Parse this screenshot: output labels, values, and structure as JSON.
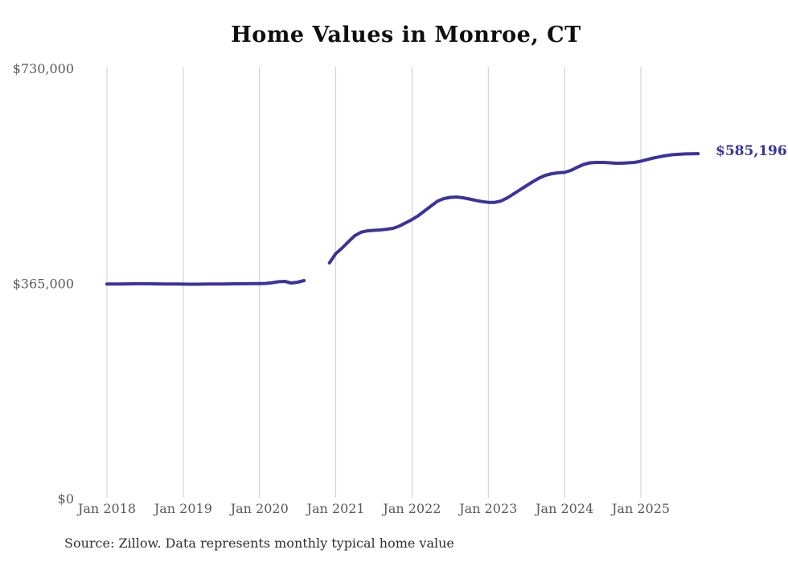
{
  "chart_data": {
    "type": "line",
    "title": "Home Values in Monroe, CT",
    "source_note": "Source: Zillow. Data represents monthly typical home value",
    "end_label": "$585,196",
    "legend_position": "none",
    "grid": "vertical-only",
    "ylim": [
      0,
      730000
    ],
    "colors": {
      "line": "#3a339c",
      "end_label": "#3a339c",
      "grid": "#cccccc",
      "axis_labels": "#595959",
      "title": "#0f0f0f",
      "source": "#2f2f2f",
      "background": "#ffffff"
    },
    "y_ticks": [
      {
        "value": 0,
        "label": "$0"
      },
      {
        "value": 365000,
        "label": "$365,000"
      },
      {
        "value": 730000,
        "label": "$730,000"
      }
    ],
    "x_ticks": [
      {
        "month": "2018-01",
        "label": "Jan 2018"
      },
      {
        "month": "2019-01",
        "label": "Jan 2019"
      },
      {
        "month": "2020-01",
        "label": "Jan 2020"
      },
      {
        "month": "2021-01",
        "label": "Jan 2021"
      },
      {
        "month": "2022-01",
        "label": "Jan 2022"
      },
      {
        "month": "2023-01",
        "label": "Jan 2023"
      },
      {
        "month": "2024-01",
        "label": "Jan 2024"
      },
      {
        "month": "2025-01",
        "label": "Jan 2025"
      }
    ],
    "series": [
      {
        "name": "Typical home value",
        "months": [
          "2018-01",
          "2018-02",
          "2018-03",
          "2018-04",
          "2018-05",
          "2018-06",
          "2018-07",
          "2018-08",
          "2018-09",
          "2018-10",
          "2018-11",
          "2018-12",
          "2019-01",
          "2019-02",
          "2019-03",
          "2019-04",
          "2019-05",
          "2019-06",
          "2019-07",
          "2019-08",
          "2019-09",
          "2019-10",
          "2019-11",
          "2019-12",
          "2020-01",
          "2020-02",
          "2020-03",
          "2020-04",
          "2020-05",
          "2020-06",
          "2020-07",
          "2020-08",
          "2020-09",
          "2020-10",
          "2020-11",
          "2020-12",
          "2021-01",
          "2021-02",
          "2021-03",
          "2021-04",
          "2021-05",
          "2021-06",
          "2021-07",
          "2021-08",
          "2021-09",
          "2021-10",
          "2021-11",
          "2021-12",
          "2022-01",
          "2022-02",
          "2022-03",
          "2022-04",
          "2022-05",
          "2022-06",
          "2022-07",
          "2022-08",
          "2022-09",
          "2022-10",
          "2022-11",
          "2022-12",
          "2023-01",
          "2023-02",
          "2023-03",
          "2023-04",
          "2023-05",
          "2023-06",
          "2023-07",
          "2023-08",
          "2023-09",
          "2023-10",
          "2023-11",
          "2023-12",
          "2024-01",
          "2024-02",
          "2024-03",
          "2024-04",
          "2024-05",
          "2024-06",
          "2024-07",
          "2024-08",
          "2024-09",
          "2024-10",
          "2024-11",
          "2024-12",
          "2025-01",
          "2025-02",
          "2025-03",
          "2025-04",
          "2025-05",
          "2025-06",
          "2025-07",
          "2025-08",
          "2025-09",
          "2025-10"
        ],
        "values": [
          364000,
          364000,
          364100,
          364200,
          364300,
          364400,
          364400,
          364300,
          364200,
          364100,
          364000,
          363900,
          363800,
          363700,
          363700,
          363800,
          363900,
          364000,
          364100,
          364200,
          364300,
          364400,
          364500,
          364600,
          364700,
          365000,
          366200,
          367800,
          368400,
          365700,
          367000,
          369800,
          null,
          null,
          null,
          399800,
          415600,
          425000,
          436000,
          446000,
          452000,
          454300,
          455000,
          455800,
          457000,
          458500,
          462300,
          467800,
          473400,
          480000,
          488300,
          496500,
          504600,
          509000,
          511000,
          511700,
          510300,
          508300,
          506000,
          503900,
          502600,
          502500,
          504800,
          510200,
          517000,
          524000,
          530800,
          537600,
          543800,
          548500,
          551300,
          552700,
          553400,
          556800,
          562200,
          567000,
          569700,
          570400,
          570400,
          569800,
          569000,
          569000,
          569700,
          570400,
          572400,
          575200,
          577900,
          580000,
          582000,
          583400,
          584200,
          584800,
          585100,
          585196
        ]
      }
    ]
  }
}
